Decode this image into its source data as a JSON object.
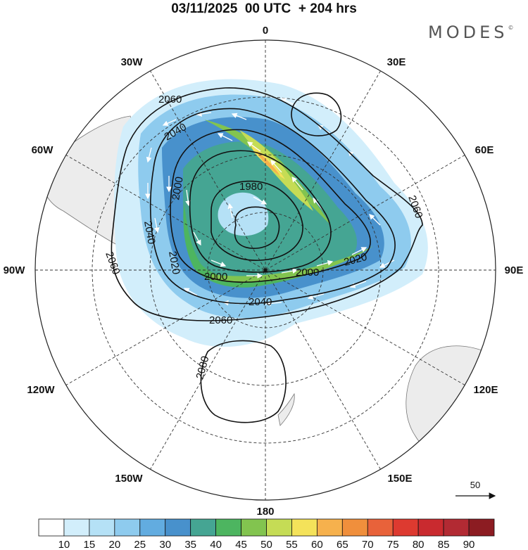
{
  "title": "03/11/2025  00 UTC  + 204 hrs",
  "brand": "MODES",
  "brand_mark": "©",
  "longitude_labels": {
    "deg0": "0",
    "deg30e": "30E",
    "deg60e": "60E",
    "deg90e": "90E",
    "deg120e": "120E",
    "deg150e": "150E",
    "deg180": "180",
    "deg150w": "150W",
    "deg120w": "120W",
    "deg90w": "90W",
    "deg60w": "60W",
    "deg30w": "30W"
  },
  "contours": {
    "c1980": "1980",
    "c2000a": "2000",
    "c2000b": "2000",
    "c2020a": "2020",
    "c2020b": "2020",
    "c2040a": "2040",
    "c2040b": "2040",
    "c2040c": "2040",
    "c2060a": "2060",
    "c2060b": "2060",
    "c2060c": "2060",
    "c2060d": "2060",
    "c2080": "2080"
  },
  "wind_reference_label": "50",
  "colorbar": {
    "ticks": [
      "10",
      "15",
      "20",
      "25",
      "30",
      "35",
      "40",
      "45",
      "50",
      "55",
      "60",
      "65",
      "70",
      "75",
      "80",
      "85",
      "90"
    ],
    "colors": [
      "#ffffff",
      "#d2eefb",
      "#b5e1f6",
      "#8ecbee",
      "#62ace0",
      "#4891cc",
      "#45a593",
      "#4db560",
      "#82c44f",
      "#c5dc55",
      "#f4e25a",
      "#f6b14d",
      "#f08f3c",
      "#e8623a",
      "#dd3a30",
      "#c92a2f",
      "#b22a33",
      "#8c1c22"
    ]
  }
}
